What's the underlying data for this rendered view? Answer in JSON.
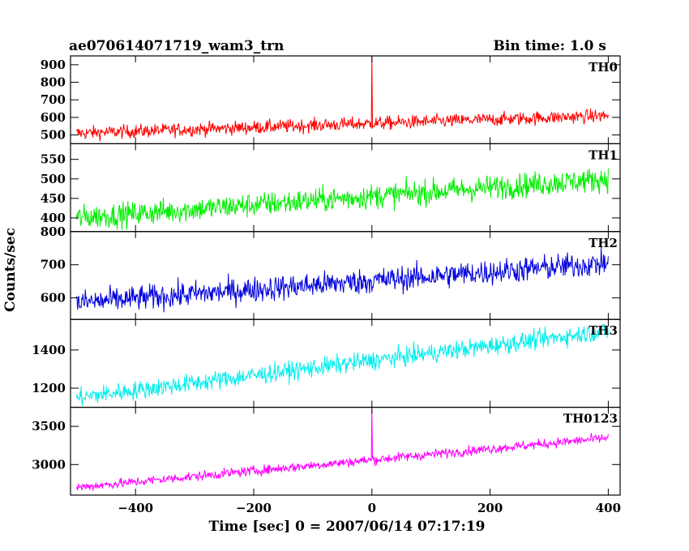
{
  "chart_data": {
    "type": "line",
    "title": "ae070614071719_wam3_trn",
    "subtitle": "Bin time: 1.0 s",
    "xlabel": "Time [sec] 0 = 2007/06/14 07:17:19",
    "ylabel": "Counts/sec",
    "xlim": [
      -510,
      420
    ],
    "x_ticks": [
      -400,
      -200,
      0,
      200,
      400
    ],
    "x_range_data": [
      -500,
      400
    ],
    "grid": false,
    "panels": [
      {
        "name": "TH0",
        "color": "#ff0000",
        "ylim": [
          450,
          950
        ],
        "y_ticks": [
          500,
          600,
          700,
          800,
          900
        ],
        "trend_start": 510,
        "trend_end": 610,
        "noise": 55,
        "spike": {
          "x": 0,
          "y": 950
        }
      },
      {
        "name": "TH1",
        "color": "#00ee00",
        "ylim": [
          365,
          590
        ],
        "y_ticks": [
          400,
          450,
          500,
          550
        ],
        "trend_start": 400,
        "trend_end": 500,
        "noise": 45,
        "spike": null
      },
      {
        "name": "TH2",
        "color": "#0000dd",
        "ylim": [
          535,
          800
        ],
        "y_ticks": [
          600,
          700,
          800
        ],
        "trend_start": 585,
        "trend_end": 705,
        "noise": 55,
        "spike": null
      },
      {
        "name": "TH3",
        "color": "#00eeee",
        "ylim": [
          1100,
          1560
        ],
        "y_ticks": [
          1200,
          1400
        ],
        "trend_start": 1150,
        "trend_end": 1500,
        "noise": 70,
        "spike": null
      },
      {
        "name": "TH0123",
        "color": "#ff00ff",
        "ylim": [
          2600,
          3750
        ],
        "y_ticks": [
          3000,
          3500
        ],
        "trend_start": 2700,
        "trend_end": 3350,
        "noise": 90,
        "spike": {
          "x": 0,
          "y": 3720
        }
      }
    ]
  }
}
